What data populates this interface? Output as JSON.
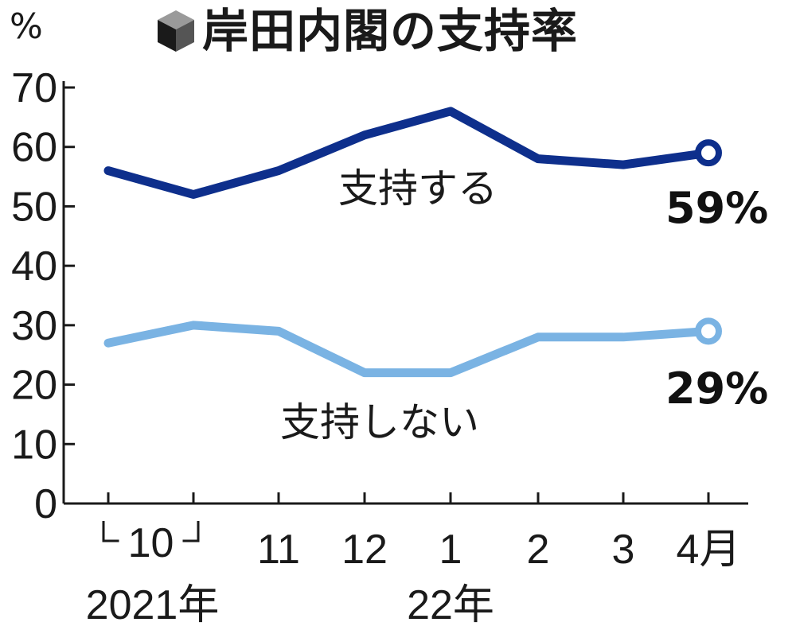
{
  "header": {
    "title": "岸田内閣の支持率",
    "unit": "%",
    "icon": "cube-icon"
  },
  "chart_data": {
    "type": "line",
    "title": "岸田内閣の支持率",
    "ylabel": "%",
    "ylim": [
      0,
      70
    ],
    "yticks": [
      0,
      10,
      20,
      30,
      40,
      50,
      60,
      70
    ],
    "categories": [
      "10a",
      "10b",
      "11",
      "12",
      "1",
      "2",
      "3",
      "4"
    ],
    "x_tick_labels": [
      "",
      "",
      "11",
      "12",
      "1",
      "2",
      "3",
      "4月"
    ],
    "x_group_labels": [
      {
        "text": "10",
        "span": [
          0,
          1
        ]
      },
      {
        "text": "2021年",
        "span": [
          0,
          1
        ]
      },
      {
        "text": "22年",
        "span": [
          4,
          4
        ]
      }
    ],
    "series": [
      {
        "name": "支持する",
        "values": [
          56,
          52,
          56,
          62,
          66,
          58,
          57,
          59
        ],
        "color": "#0e2f8c",
        "end_label": "59%"
      },
      {
        "name": "支持しない",
        "values": [
          27,
          30,
          29,
          22,
          22,
          28,
          28,
          29
        ],
        "color": "#7ab3e3",
        "end_label": "29%"
      }
    ],
    "grid": false
  }
}
